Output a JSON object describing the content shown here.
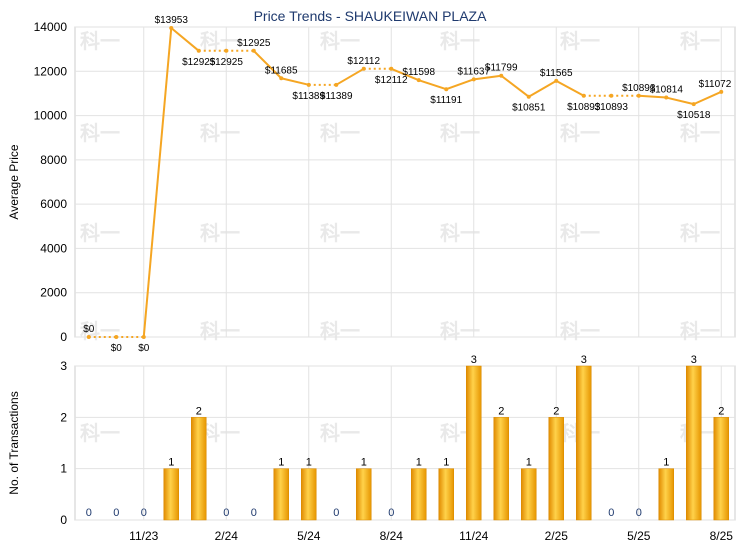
{
  "chart_data": [
    {
      "type": "line",
      "title": "Price Trends - SHAUKEIWAN PLAZA",
      "ylabel": "Average Price",
      "ylim": [
        0,
        14000
      ],
      "yticks": [
        0,
        2000,
        4000,
        6000,
        8000,
        10000,
        12000,
        14000
      ],
      "grid": true,
      "color": "#f5a623",
      "series": [
        {
          "values": [
            0,
            0,
            0,
            13953,
            12925,
            12925,
            12925,
            11685,
            11389,
            11389,
            12112,
            12112,
            11598,
            11191,
            11637,
            11799,
            10851,
            11565,
            10893,
            10893,
            10893,
            10814,
            10518,
            11072
          ],
          "labels": [
            "$0",
            "$0",
            "$0",
            "$13953",
            "$12925",
            "$12925",
            "$12925",
            "$11685",
            "$11389",
            "$11389",
            "$12112",
            "$12112",
            "$11598",
            "$11191",
            "$11637",
            "$11799",
            "$10851",
            "$11565",
            "$10893",
            "$10893",
            "$10893",
            "$10814",
            "$10518",
            "$11072"
          ]
        }
      ]
    },
    {
      "type": "bar",
      "ylabel": "No. of Transactions",
      "ylim": [
        0,
        3
      ],
      "yticks": [
        0,
        1,
        2,
        3
      ],
      "grid": true,
      "color": "#f5a623",
      "x_ticks": [
        "11/23",
        "2/24",
        "5/24",
        "8/24",
        "11/24",
        "2/25",
        "5/25",
        "8/25"
      ],
      "series": [
        {
          "values": [
            0,
            0,
            0,
            1,
            2,
            0,
            0,
            1,
            1,
            0,
            1,
            0,
            1,
            1,
            3,
            2,
            1,
            2,
            3,
            0,
            0,
            1,
            3,
            2
          ]
        }
      ]
    }
  ],
  "watermark": "科一"
}
